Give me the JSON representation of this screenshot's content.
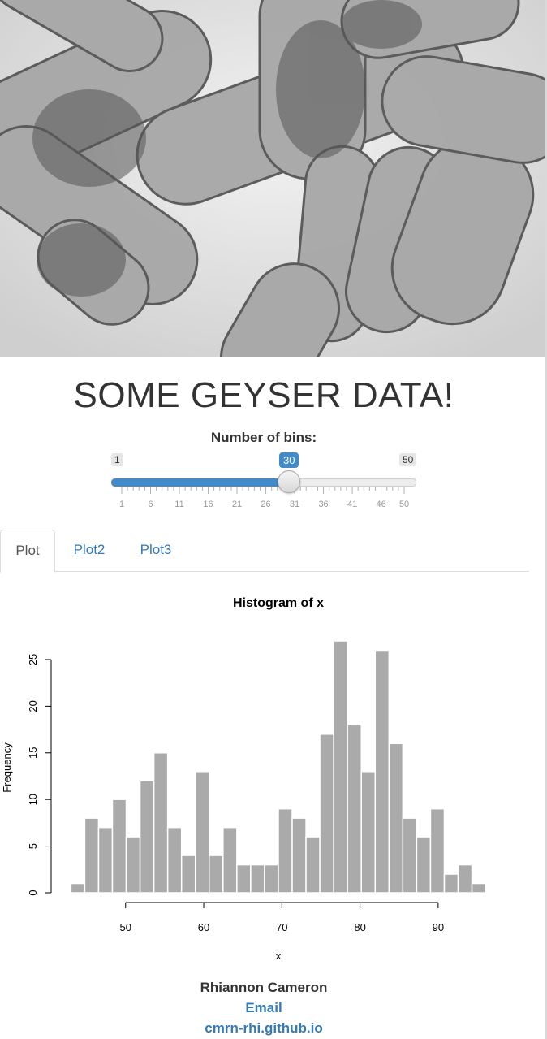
{
  "page": {
    "title": "SOME GEYSER DATA!"
  },
  "slider": {
    "label": "Number of bins:",
    "min": 1,
    "max": 50,
    "value": 30,
    "min_label": "1",
    "max_label": "50",
    "value_label": "30",
    "tick_labels": [
      "1",
      "6",
      "11",
      "16",
      "21",
      "26",
      "31",
      "36",
      "41",
      "46",
      "50"
    ],
    "accent": "#428bca"
  },
  "tabs": [
    {
      "label": "Plot",
      "active": true
    },
    {
      "label": "Plot2",
      "active": false
    },
    {
      "label": "Plot3",
      "active": false
    }
  ],
  "chart_data": {
    "type": "bar",
    "title": "Histogram of x",
    "xlabel": "x",
    "ylabel": "Frequency",
    "bin_start": 43,
    "bin_width": 1.77,
    "values": [
      1,
      8,
      7,
      10,
      6,
      12,
      15,
      7,
      4,
      13,
      4,
      7,
      3,
      3,
      3,
      9,
      8,
      6,
      17,
      27,
      18,
      13,
      26,
      16,
      8,
      6,
      9,
      2,
      3,
      1
    ],
    "xticks": [
      50,
      60,
      70,
      80,
      90
    ],
    "yticks": [
      0,
      5,
      10,
      15,
      20,
      25
    ],
    "xlim": [
      41.3,
      97.7
    ],
    "ylim": [
      0,
      27
    ],
    "bar_color": "#aaaaaa"
  },
  "footer": {
    "author": "Rhiannon Cameron",
    "email": "Email",
    "site": "cmrn-rhi.github.io",
    "link_color": "#337ab7"
  }
}
